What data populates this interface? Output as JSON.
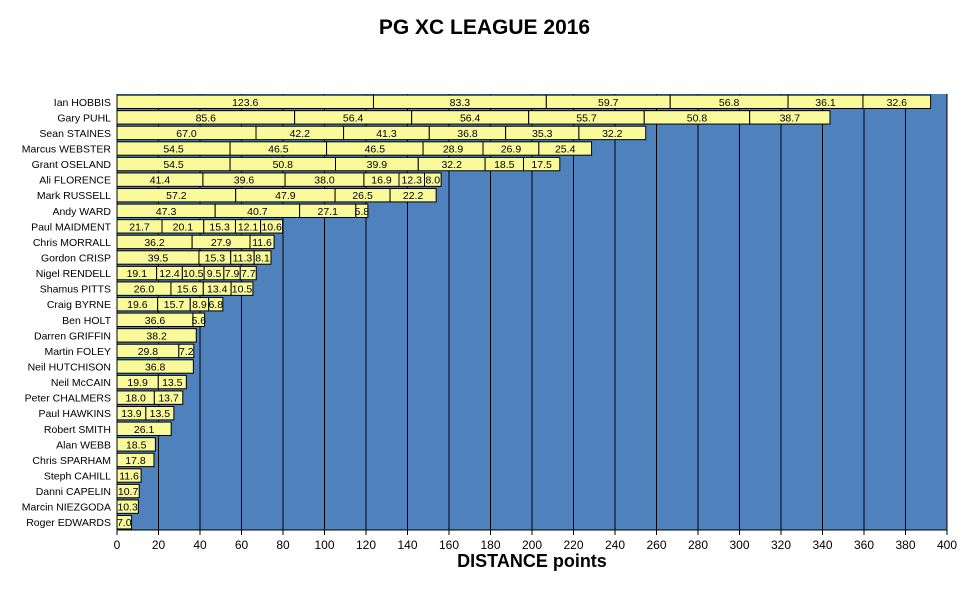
{
  "chart_data": {
    "type": "bar",
    "orientation": "horizontal",
    "stacked": true,
    "title": "PG XC LEAGUE 2016",
    "xlabel": "DISTANCE points",
    "ylabel": "",
    "xlim": [
      0,
      400
    ],
    "x_ticks": [
      "0",
      "20",
      "40",
      "60",
      "80",
      "100",
      "120",
      "140",
      "160",
      "180",
      "200",
      "220",
      "240",
      "260",
      "280",
      "300",
      "320",
      "340",
      "360",
      "380",
      "400"
    ],
    "grid": "vertical",
    "legend": "none",
    "colors": {
      "plot_background": "#4f81bd",
      "bar_fill": "#fafa9a",
      "bar_border": "#000000"
    },
    "categories": [
      "Ian HOBBIS",
      "Gary PUHL",
      "Sean STAINES",
      "Marcus WEBSTER",
      "Grant OSELAND",
      "Ali FLORENCE",
      "Mark RUSSELL",
      "Andy WARD",
      "Paul MAIDMENT",
      "Chris MORRALL",
      "Gordon CRISP",
      "Nigel RENDELL",
      "Shamus PITTS",
      "Craig BYRNE",
      "Ben HOLT",
      "Darren GRIFFIN",
      "Martin FOLEY",
      "Neil HUTCHISON",
      "Neil McCAIN",
      "Peter CHALMERS",
      "Paul HAWKINS",
      "Robert SMITH",
      "Alan WEBB",
      "Chris SPARHAM",
      "Steph CAHILL",
      "Danni CAPELIN",
      "Marcin NIEZGODA",
      "Roger EDWARDS"
    ],
    "values": [
      [
        123.6,
        83.3,
        59.7,
        56.8,
        36.1,
        32.6
      ],
      [
        85.6,
        56.4,
        56.4,
        55.7,
        50.8,
        38.7
      ],
      [
        67.0,
        42.2,
        41.3,
        36.8,
        35.3,
        32.2
      ],
      [
        54.5,
        46.5,
        46.5,
        28.9,
        26.9,
        25.4
      ],
      [
        54.5,
        50.8,
        39.9,
        32.2,
        18.5,
        17.5
      ],
      [
        41.4,
        39.6,
        38.0,
        16.9,
        12.3,
        8.0
      ],
      [
        57.2,
        47.9,
        26.5,
        22.2
      ],
      [
        47.3,
        40.7,
        27.1,
        5.8
      ],
      [
        21.7,
        20.1,
        15.3,
        12.1,
        10.6
      ],
      [
        36.2,
        27.9,
        11.6
      ],
      [
        39.5,
        15.3,
        11.3,
        8.1
      ],
      [
        19.1,
        12.4,
        10.5,
        9.5,
        7.9,
        7.7
      ],
      [
        26.0,
        15.6,
        13.4,
        10.5
      ],
      [
        19.6,
        15.7,
        8.9,
        6.8
      ],
      [
        36.6,
        5.6
      ],
      [
        38.2
      ],
      [
        29.8,
        7.2
      ],
      [
        36.8
      ],
      [
        19.9,
        13.5
      ],
      [
        18.0,
        13.7
      ],
      [
        13.9,
        13.5
      ],
      [
        26.1
      ],
      [
        18.5
      ],
      [
        17.8
      ],
      [
        11.6
      ],
      [
        10.7
      ],
      [
        10.3
      ],
      [
        7.0
      ]
    ]
  }
}
